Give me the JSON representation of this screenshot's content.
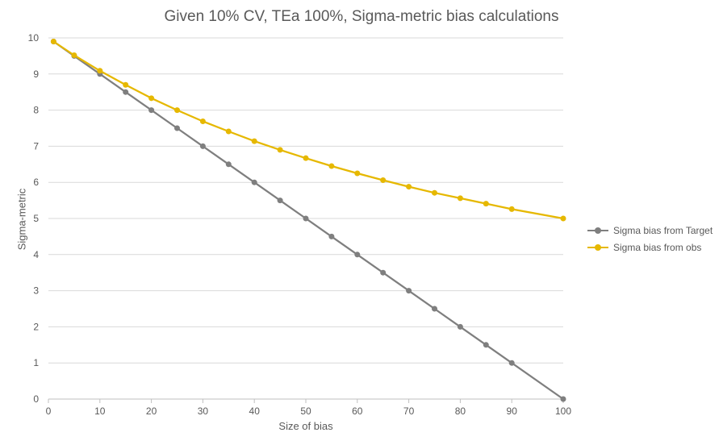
{
  "chart_data": {
    "type": "line",
    "title": "Given 10% CV, TEa 100%, Sigma-metric bias calculations",
    "xlabel": "Size of bias",
    "ylabel": "Sigma-metric",
    "xlim": [
      0,
      100
    ],
    "ylim": [
      0,
      10
    ],
    "x_ticks": [
      0,
      10,
      20,
      30,
      40,
      50,
      60,
      70,
      80,
      90,
      100
    ],
    "y_ticks": [
      0,
      1,
      2,
      3,
      4,
      5,
      6,
      7,
      8,
      9,
      10
    ],
    "grid": "horizontal",
    "legend_position": "right",
    "x": [
      1,
      5,
      10,
      15,
      20,
      25,
      30,
      35,
      40,
      45,
      50,
      55,
      60,
      65,
      70,
      75,
      80,
      85,
      90,
      100
    ],
    "series": [
      {
        "name": "Sigma bias from Target",
        "color": "#7f7f7f",
        "values": [
          9.9,
          9.5,
          9.0,
          8.5,
          8.0,
          7.5,
          7.0,
          6.5,
          6.0,
          5.5,
          5.0,
          4.5,
          4.0,
          3.5,
          3.0,
          2.5,
          2.0,
          1.5,
          1.0,
          0.0
        ]
      },
      {
        "name": "Sigma bias from obs",
        "color": "#e6b800",
        "values": [
          9.9,
          9.52,
          9.09,
          8.7,
          8.33,
          8.0,
          7.69,
          7.41,
          7.14,
          6.9,
          6.67,
          6.45,
          6.25,
          6.06,
          5.88,
          5.71,
          5.56,
          5.41,
          5.26,
          5.0
        ]
      }
    ]
  }
}
